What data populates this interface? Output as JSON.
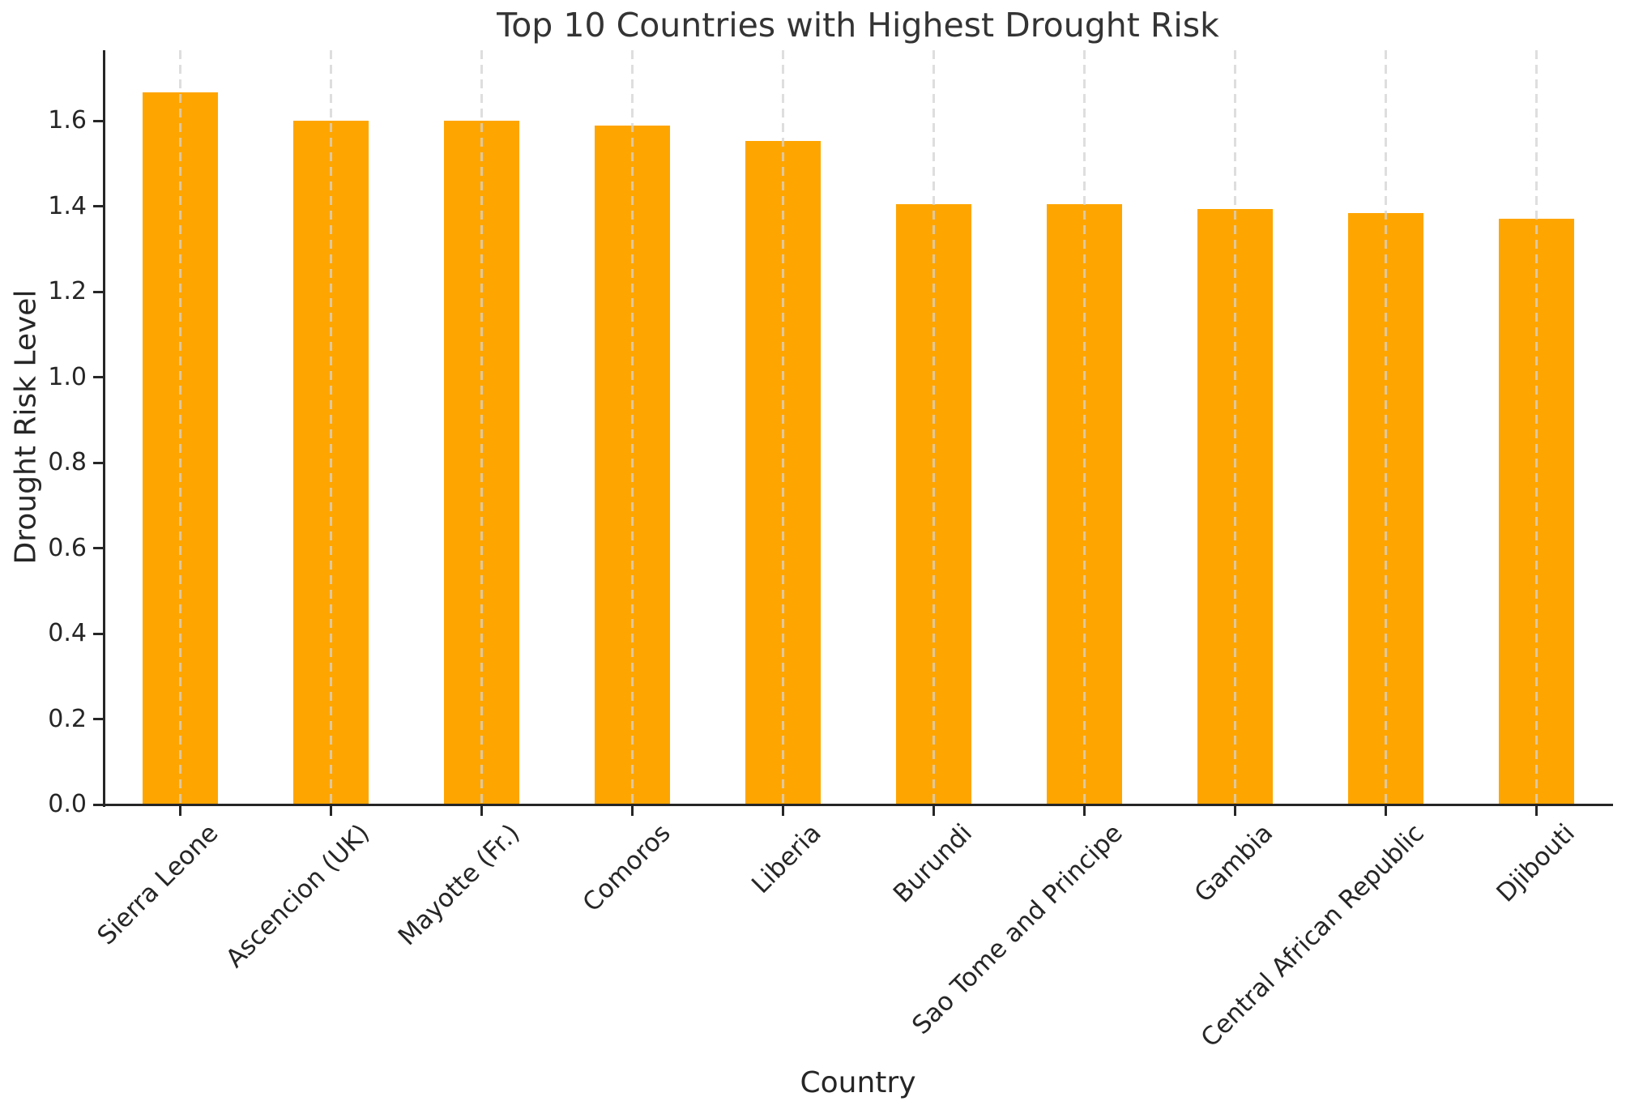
{
  "figure": {
    "background_color": "#ffffff",
    "text_color": "#262626"
  },
  "chart_data": {
    "type": "bar",
    "title": "Top 10 Countries with Highest Drought Risk",
    "xlabel": "Country",
    "ylabel": "Drought Risk Level",
    "categories": [
      "Sierra Leone",
      "Ascencion (UK)",
      "Mayotte (Fr.)",
      "Comoros",
      "Liberia",
      "Burundi",
      "Sao Tome and Principe",
      "Gambia",
      "Central African Republic",
      "Djibouti"
    ],
    "values": [
      1.667,
      1.6,
      1.6,
      1.588,
      1.553,
      1.405,
      1.405,
      1.394,
      1.383,
      1.37
    ],
    "bar_color": "#FFA500",
    "ylim": [
      0,
      1.765
    ],
    "yticks": [
      0.0,
      0.2,
      0.4,
      0.6,
      0.8,
      1.0,
      1.2,
      1.4,
      1.6
    ],
    "ytick_labels": [
      "0.0",
      "0.2",
      "0.4",
      "0.6",
      "0.8",
      "1.0",
      "1.2",
      "1.4",
      "1.6"
    ],
    "x_tick_rotation_deg": 45,
    "grid": {
      "axis": "x",
      "style": "dashed",
      "color": "#D3D3D3"
    },
    "legend": "none",
    "spines": [
      "left",
      "bottom"
    ],
    "spine_color": "#262626"
  }
}
